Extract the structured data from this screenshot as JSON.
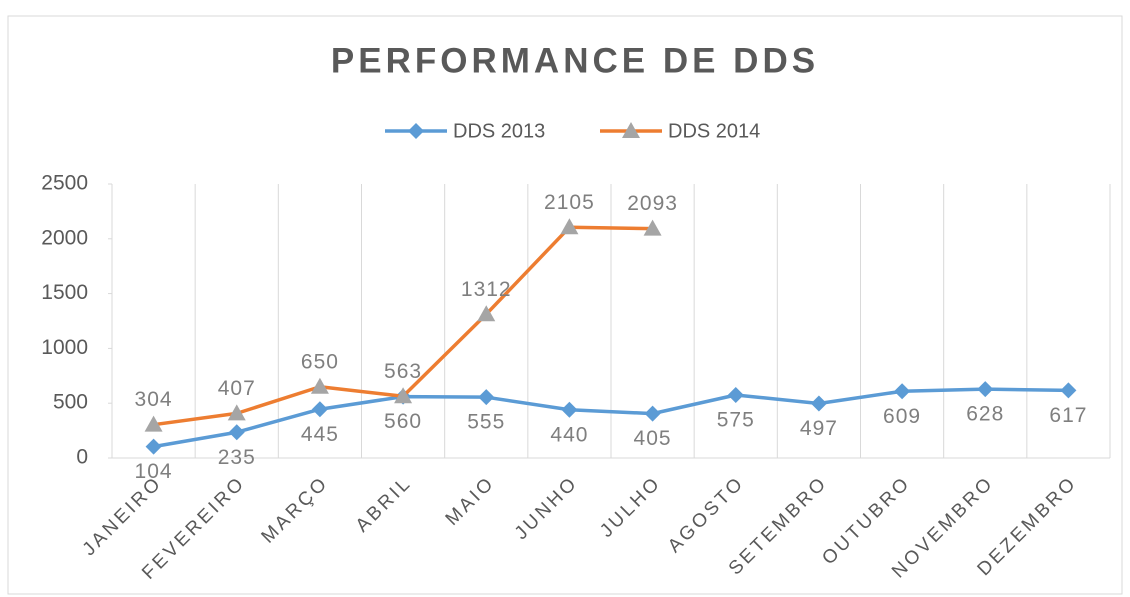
{
  "chart_data": {
    "type": "line",
    "title": "PERFORMANCE  DE DDS",
    "categories": [
      "JANEIRO",
      "FEVEREIRO",
      "MARÇO",
      "ABRIL",
      "MAIO",
      "JUNHO",
      "JULHO",
      "AGOSTO",
      "SETEMBRO",
      "OUTUBRO",
      "NOVEMBRO",
      "DEZEMBRO"
    ],
    "series": [
      {
        "name": "DDS 2013",
        "color": "#5b9bd5",
        "marker": "diamond",
        "marker_color": "#5b9bd5",
        "label_position": "below",
        "values": [
          104,
          235,
          445,
          560,
          555,
          440,
          405,
          575,
          497,
          609,
          628,
          617
        ]
      },
      {
        "name": "DDS 2014",
        "color": "#ed7d31",
        "marker": "triangle",
        "marker_color": "#a5a5a5",
        "label_position": "above",
        "values": [
          304,
          407,
          650,
          563,
          1312,
          2105,
          2093,
          null,
          null,
          null,
          null,
          null
        ]
      }
    ],
    "ylim": [
      0,
      2500
    ],
    "yticks": [
      0,
      500,
      1000,
      1500,
      2000,
      2500
    ],
    "grid": true,
    "legend": "top"
  }
}
